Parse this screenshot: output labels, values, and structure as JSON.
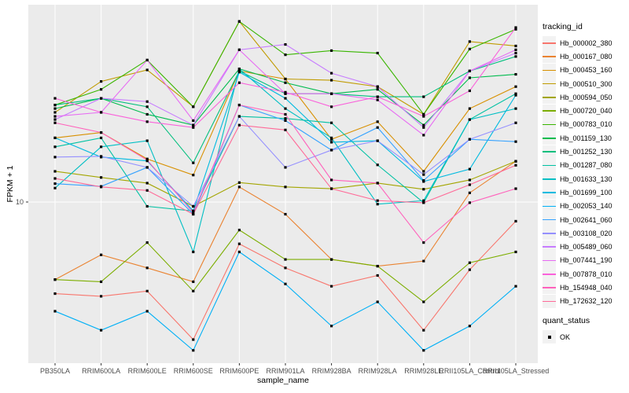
{
  "y_axis": {
    "title": "FPKM + 1",
    "tick_label": "10"
  },
  "x_axis": {
    "title": "sample_name"
  },
  "legend": {
    "tracking_title": "tracking_id",
    "quant_title": "quant_status",
    "quant_ok_label": "OK"
  },
  "style": {
    "panel_bg": "#EBEBEB",
    "grid_color": "#FFFFFF",
    "tick_color": "#333333",
    "tick_label_color": "#4D4D4D",
    "point_color": "#000000",
    "key_bg": "#F2F2F2"
  },
  "chart_data": {
    "type": "line",
    "title": "",
    "xlabel": "sample_name",
    "ylabel": "FPKM + 1",
    "yscale": "log10",
    "ylim": [
      1,
      170
    ],
    "yticks": [
      10
    ],
    "grid": "vertical-majors-and-y10",
    "legend_position": "right",
    "point_marker": "small black square (quant_status = OK)",
    "categories": [
      "PB350LA",
      "RRIM600LA",
      "RRIM600LE",
      "RRIM600SE",
      "RRIM600PE",
      "RRIM901LA",
      "RRIM928BA",
      "RRIM928LA",
      "RRIM928LE",
      "RRII105LA_Control",
      "RRII105LA_Stressed"
    ],
    "series": [
      {
        "name": "Hb_000002_380",
        "color": "#F8766D",
        "values": [
          2.7,
          2.6,
          2.8,
          1.4,
          5.5,
          3.9,
          3.0,
          3.5,
          1.6,
          3.8,
          7.6
        ]
      },
      {
        "name": "Hb_000167_080",
        "color": "#EA8331",
        "values": [
          3.3,
          4.7,
          3.9,
          3.2,
          12.4,
          8.4,
          4.4,
          4.0,
          4.3,
          11.4,
          17.9
        ]
      },
      {
        "name": "Hb_000453_160",
        "color": "#D89000",
        "values": [
          25,
          27,
          18.5,
          14.7,
          65,
          58,
          24.5,
          31.5,
          15.5,
          38,
          52
        ]
      },
      {
        "name": "Hb_000510_300",
        "color": "#C09B00",
        "values": [
          36,
          56,
          66,
          39,
          132,
          58,
          57,
          52,
          35,
          99,
          93
        ]
      },
      {
        "name": "Hb_000594_050",
        "color": "#A3A500",
        "values": [
          15.5,
          14.2,
          13.1,
          9.4,
          13.2,
          12.4,
          12.1,
          13.1,
          12.0,
          13.7,
          17.9
        ]
      },
      {
        "name": "Hb_000720_040",
        "color": "#7CAE00",
        "values": [
          3.3,
          3.2,
          5.6,
          2.8,
          6.7,
          4.4,
          4.4,
          4.0,
          2.4,
          4.2,
          4.9
        ]
      },
      {
        "name": "Hb_000783_010",
        "color": "#39B600",
        "values": [
          40,
          50,
          76,
          39,
          132,
          82,
          87,
          84,
          35,
          89,
          118
        ]
      },
      {
        "name": "Hb_001159_130",
        "color": "#00BB4E",
        "values": [
          38,
          44,
          35,
          30,
          67,
          55,
          47,
          50,
          30,
          59,
          62
        ]
      },
      {
        "name": "Hb_001252_130",
        "color": "#00BF7D",
        "values": [
          40,
          44,
          39,
          17.5,
          65,
          47,
          47,
          45,
          45,
          65,
          80
        ]
      },
      {
        "name": "Hb_001287_080",
        "color": "#00C1A3",
        "values": [
          22,
          25,
          9.4,
          8.8,
          34,
          33,
          31,
          17,
          9.9,
          32.5,
          47
        ]
      },
      {
        "name": "Hb_001633_130",
        "color": "#00BFC4",
        "values": [
          12.2,
          22,
          24,
          4.9,
          67,
          38,
          25,
          9.7,
          10.2,
          32.5,
          38
        ]
      },
      {
        "name": "Hb_001699_100",
        "color": "#00BAE0",
        "values": [
          25,
          19,
          18,
          8.8,
          64,
          44,
          23.5,
          24,
          13.4,
          16,
          46
        ]
      },
      {
        "name": "Hb_002053_140",
        "color": "#00B0F6",
        "values": [
          2.1,
          1.6,
          2.1,
          1.2,
          4.9,
          3.1,
          1.7,
          2.4,
          1.2,
          1.7,
          3.0
        ]
      },
      {
        "name": "Hb_002641_060",
        "color": "#35A2FF",
        "values": [
          13,
          12.5,
          16.4,
          8.4,
          40,
          32,
          21,
          29,
          13.6,
          24.5,
          23.7
        ]
      },
      {
        "name": "Hb_003108_020",
        "color": "#9590FF",
        "values": [
          19,
          19.2,
          16.4,
          9.4,
          34,
          16.4,
          21,
          24,
          14.8,
          24.5,
          31
        ]
      },
      {
        "name": "Hb_005489_060",
        "color": "#C77CFF",
        "values": [
          32.5,
          44,
          42,
          30,
          88,
          95,
          63,
          52,
          29,
          65,
          84
        ]
      },
      {
        "name": "Hb_007441_190",
        "color": "#E76BF3",
        "values": [
          34,
          36,
          76,
          32,
          88,
          47,
          47,
          43,
          26,
          65,
          88
        ]
      },
      {
        "name": "Hb_007878_010",
        "color": "#FA62DB",
        "values": [
          44,
          36,
          31.5,
          29,
          55,
          48,
          39,
          45,
          34,
          49,
          121
        ]
      },
      {
        "name": "Hb_154948_040",
        "color": "#FF62BC",
        "values": [
          31,
          27,
          18.2,
          8.6,
          40,
          35,
          13.7,
          13.1,
          5.6,
          9.9,
          12.1
        ]
      },
      {
        "name": "Hb_172632_120",
        "color": "#FF6A98",
        "values": [
          14,
          12.4,
          11.8,
          8.4,
          30,
          28,
          12.1,
          10.2,
          9.9,
          12.8,
          16.9
        ]
      }
    ]
  }
}
